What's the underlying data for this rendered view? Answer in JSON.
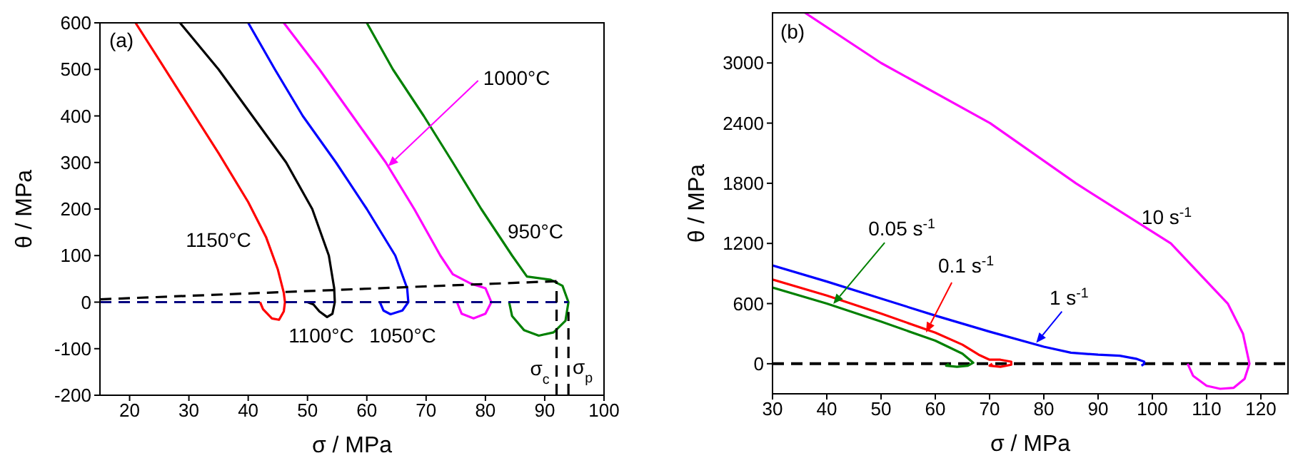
{
  "chart_data": [
    {
      "type": "line",
      "xlabel": "σ / MPa",
      "ylabel": "θ / MPa",
      "xlim": [
        15,
        100
      ],
      "ylim": [
        -200,
        600
      ],
      "xticks": [
        20,
        30,
        40,
        50,
        60,
        70,
        80,
        90,
        100
      ],
      "yticks": [
        -200,
        -100,
        0,
        100,
        200,
        300,
        400,
        500,
        600
      ],
      "marker": "none",
      "annotations": [
        "(a)",
        "1150°C",
        "1100°C",
        "1050°C",
        {
          "text": "1000°C",
          "x": 63.6,
          "y": 292
        },
        "950°C",
        "σ$_{c}$",
        "σ$_{p}$"
      ],
      "series": [
        {
          "color": "#ff0000",
          "x": [
            21,
            25,
            30,
            35,
            40,
            43,
            45,
            46,
            46.2,
            46,
            45.2,
            44,
            42.5,
            42
          ],
          "values": [
            600,
            520,
            420,
            320,
            215,
            140,
            70,
            20,
            0,
            -20,
            -38,
            -35,
            -15,
            0
          ]
        },
        {
          "color": "#000000",
          "x": [
            28.5,
            35,
            40.7,
            46.4,
            50.8,
            53.6,
            54.5,
            54.6,
            54.2,
            53.3,
            52,
            51,
            50
          ],
          "values": [
            600,
            500,
            400,
            300,
            200,
            100,
            30,
            0,
            -25,
            -32,
            -20,
            -5,
            0
          ]
        },
        {
          "color": "#0000ff",
          "x": [
            40,
            44.5,
            49.2,
            54.8,
            60,
            64.8,
            66.8,
            67,
            66,
            64,
            62.8,
            62.2
          ],
          "values": [
            600,
            500,
            400,
            300,
            200,
            100,
            30,
            0,
            -18,
            -26,
            -18,
            0
          ]
        },
        {
          "color": "#ff00ff",
          "x": [
            46,
            52,
            57.6,
            63.2,
            68,
            72.4,
            74.5,
            77.5,
            80,
            81,
            80,
            78,
            76,
            75.2
          ],
          "values": [
            600,
            500,
            400,
            300,
            200,
            100,
            60,
            40,
            30,
            0,
            -25,
            -35,
            -25,
            0
          ]
        },
        {
          "color": "#008000",
          "x": [
            60,
            64.4,
            69.6,
            74.5,
            79.3,
            84.5,
            87,
            91,
            93,
            94,
            93.5,
            91.5,
            89,
            86.5,
            84.5,
            84
          ],
          "values": [
            600,
            500,
            400,
            300,
            200,
            100,
            55,
            48,
            35,
            0,
            -40,
            -65,
            -72,
            -60,
            -30,
            0
          ]
        },
        {
          "color": "#000000",
          "line_style": "dashed",
          "x": [
            15,
            92
          ],
          "values": [
            6,
            45
          ]
        },
        {
          "color": "#000080",
          "line_style": "dashed",
          "x": [
            15,
            94
          ],
          "values": [
            0,
            0
          ]
        },
        {
          "color": "#000000",
          "line_style": "dashed",
          "x": [
            92,
            92
          ],
          "values": [
            -200,
            45
          ]
        },
        {
          "color": "#000000",
          "line_style": "dashed",
          "x": [
            94,
            94
          ],
          "values": [
            -200,
            -21
          ]
        }
      ]
    },
    {
      "type": "line",
      "xlabel": "σ / MPa",
      "ylabel": "θ / MPa",
      "xlim": [
        30,
        125
      ],
      "ylim": [
        -300,
        3500
      ],
      "xticks": [
        30,
        40,
        50,
        60,
        70,
        80,
        90,
        100,
        110,
        120
      ],
      "yticks": [
        0,
        600,
        1200,
        1800,
        2400,
        3000
      ],
      "marker": "none",
      "annotations": [
        "(b)",
        "10 s$^{-1}$",
        {
          "text": "1 s$^{-1}$",
          "x": 78.6,
          "y": 208
        },
        {
          "text": "0.1 s$^{-1}$",
          "x": 58.3,
          "y": 312
        },
        {
          "text": "0.05 s$^{-1}$",
          "x": 41.2,
          "y": 596
        }
      ],
      "ref_lines": [
        {
          "axis": "y",
          "value": 0,
          "color": "#000000",
          "line_style": "dashed"
        }
      ],
      "series": [
        {
          "color": "#ff00ff",
          "x": [
            36,
            50,
            70.1,
            85.9,
            103.4,
            113.9,
            116.7,
            117.9,
            117,
            115,
            112.5,
            110,
            107.5,
            106.5
          ],
          "values": [
            3500,
            3000,
            2400,
            1800,
            1200,
            600,
            300,
            0,
            -150,
            -240,
            -250,
            -220,
            -120,
            0
          ]
        },
        {
          "color": "#0000ff",
          "x": [
            30,
            40,
            50,
            60,
            70,
            80,
            85,
            90,
            94,
            97,
            98.5,
            98.5,
            98
          ],
          "values": [
            980,
            820,
            650,
            480,
            320,
            170,
            110,
            90,
            80,
            50,
            20,
            0,
            -20
          ]
        },
        {
          "color": "#ff0000",
          "x": [
            30,
            40,
            50,
            60,
            65,
            68,
            70,
            72,
            74,
            74,
            72,
            70,
            70.5
          ],
          "values": [
            840,
            680,
            500,
            310,
            190,
            90,
            40,
            40,
            20,
            -10,
            -30,
            -20,
            0
          ]
        },
        {
          "color": "#008000",
          "x": [
            30,
            40,
            50,
            60,
            65,
            67,
            66,
            64,
            62,
            62.5
          ],
          "values": [
            760,
            600,
            420,
            230,
            100,
            10,
            -20,
            -30,
            -20,
            0
          ]
        }
      ]
    }
  ]
}
